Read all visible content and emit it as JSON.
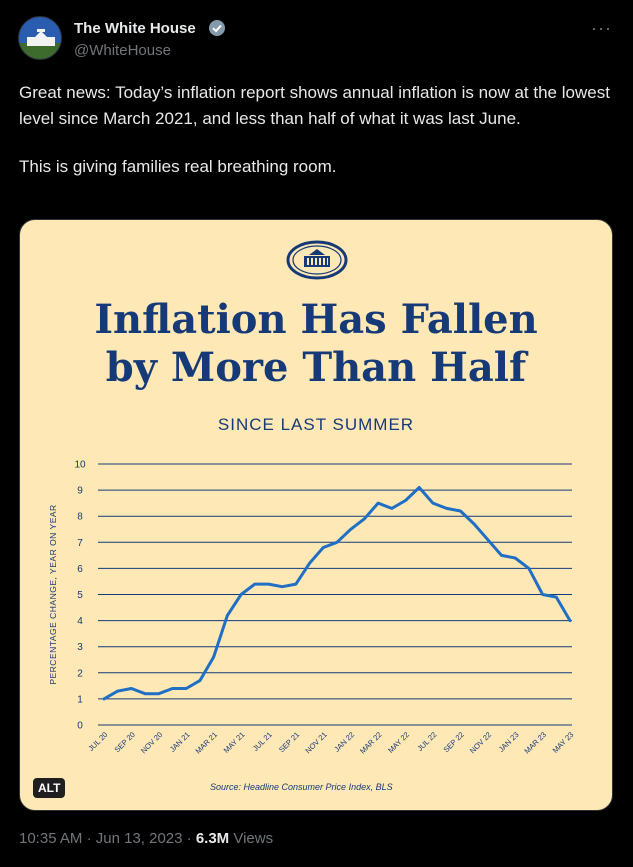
{
  "account": {
    "name": "The White House",
    "handle": "@WhiteHouse",
    "more_icon": "more-horizontal-icon",
    "verified_icon": "verified-badge-icon"
  },
  "tweet": {
    "text_paragraphs": [
      "Great news: Today’s inflation report shows annual inflation is now at the lowest level since March 2021, and less than half of what it was last June.",
      "This is giving families real breathing room."
    ],
    "time": "10:35 AM",
    "separator": "·",
    "date": "Jun 13, 2023",
    "views_count": "6.3M",
    "views_label": "Views"
  },
  "image": {
    "alt_badge": "ALT",
    "title_line1": "Inflation Has Fallen",
    "title_line2": "by More Than Half",
    "subtitle": "SINCE LAST SUMMER",
    "source": "Source: Headline Consumer Price Index, BLS"
  },
  "colors": {
    "background": "#000000",
    "card_bg": "#fee8b6",
    "navy": "#163a78",
    "line_blue": "#1f6fc5"
  },
  "chart_data": {
    "type": "line",
    "ylabel": "PERCENTAGE CHANGE, YEAR ON YEAR",
    "ylim": [
      0,
      10
    ],
    "yticks": [
      0,
      1,
      2,
      3,
      4,
      5,
      6,
      7,
      8,
      9,
      10
    ],
    "grid": true,
    "x": [
      "JUL 20",
      "AUG 20",
      "SEP 20",
      "OCT 20",
      "NOV 20",
      "DEC 20",
      "JAN 21",
      "FEB 21",
      "MAR 21",
      "APR 21",
      "MAY 21",
      "JUN 21",
      "JUL 21",
      "AUG 21",
      "SEP 21",
      "OCT 21",
      "NOV 21",
      "DEC 21",
      "JAN 22",
      "FEB 22",
      "MAR 22",
      "APR 22",
      "MAY 22",
      "JUN 22",
      "JUL 22",
      "AUG 22",
      "SEP 22",
      "OCT 22",
      "NOV 22",
      "DEC 22",
      "JAN 23",
      "FEB 23",
      "MAR 23",
      "APR 23",
      "MAY 23"
    ],
    "xtick_labels": [
      "JUL 20",
      "SEP 20",
      "NOV 20",
      "JAN 21",
      "MAR 21",
      "MAY 21",
      "JUL 21",
      "SEP 21",
      "NOV 21",
      "JAN 22",
      "MAR 22",
      "MAY 22",
      "JUL 22",
      "SEP 22",
      "NOV 22",
      "JAN 23",
      "MAR 23",
      "MAY 23"
    ],
    "values": [
      1.0,
      1.3,
      1.4,
      1.2,
      1.2,
      1.4,
      1.4,
      1.7,
      2.6,
      4.2,
      5.0,
      5.4,
      5.4,
      5.3,
      5.4,
      6.2,
      6.8,
      7.0,
      7.5,
      7.9,
      8.5,
      8.3,
      8.6,
      9.1,
      8.5,
      8.3,
      8.2,
      7.7,
      7.1,
      6.5,
      6.4,
      6.0,
      5.0,
      4.9,
      4.0
    ]
  }
}
